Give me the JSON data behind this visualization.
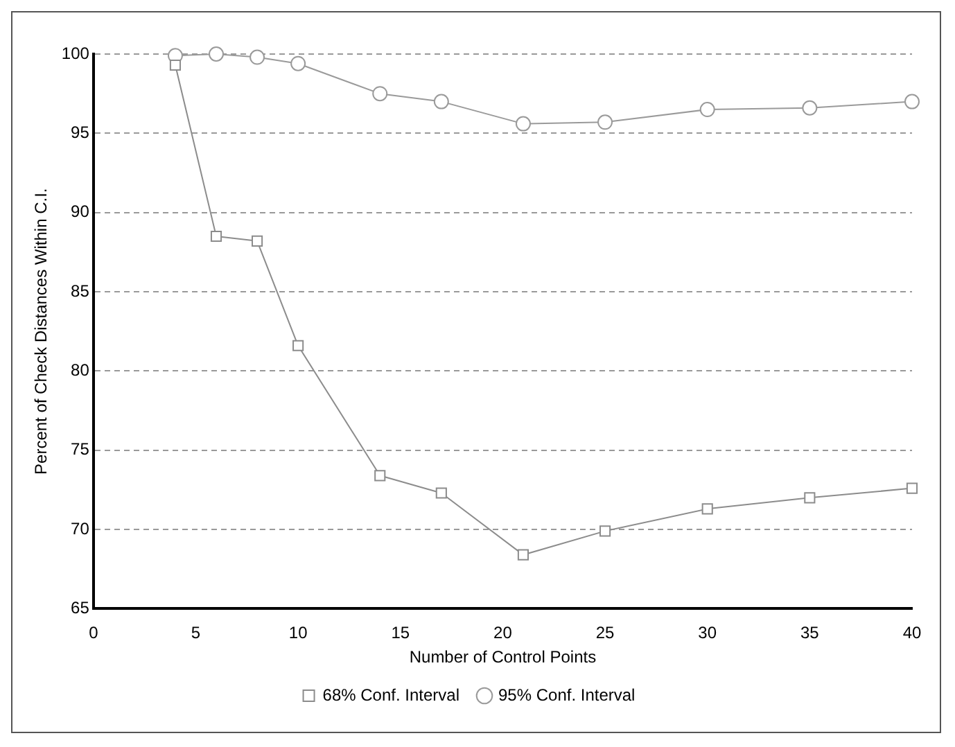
{
  "chart_data": {
    "type": "line",
    "xlabel": "Number of Control Points",
    "ylabel": "Percent of Check Distances Within C.I.",
    "xlim": [
      0,
      40
    ],
    "xticks": [
      0,
      5,
      10,
      15,
      20,
      25,
      30,
      35,
      40
    ],
    "ylim": [
      65,
      100
    ],
    "yticks": [
      65,
      70,
      75,
      80,
      85,
      90,
      95,
      100
    ],
    "grid": "y",
    "legend": "bottom",
    "series": [
      {
        "name": "68% Conf. Interval",
        "color": "#8c8c8c",
        "marker": "square",
        "x": [
          4,
          6,
          8,
          10,
          14,
          17,
          21,
          25,
          30,
          35,
          40
        ],
        "values": [
          99.3,
          88.5,
          88.2,
          81.6,
          73.4,
          72.3,
          68.4,
          69.9,
          71.3,
          72.0,
          72.6
        ]
      },
      {
        "name": "95% Conf. Interval",
        "color": "#9a9a9a",
        "marker": "circle",
        "x": [
          4,
          6,
          8,
          10,
          14,
          17,
          21,
          25,
          30,
          35,
          40
        ],
        "values": [
          99.9,
          100,
          99.8,
          99.4,
          97.5,
          97.0,
          95.6,
          95.7,
          96.5,
          96.6,
          97.0
        ]
      }
    ]
  }
}
